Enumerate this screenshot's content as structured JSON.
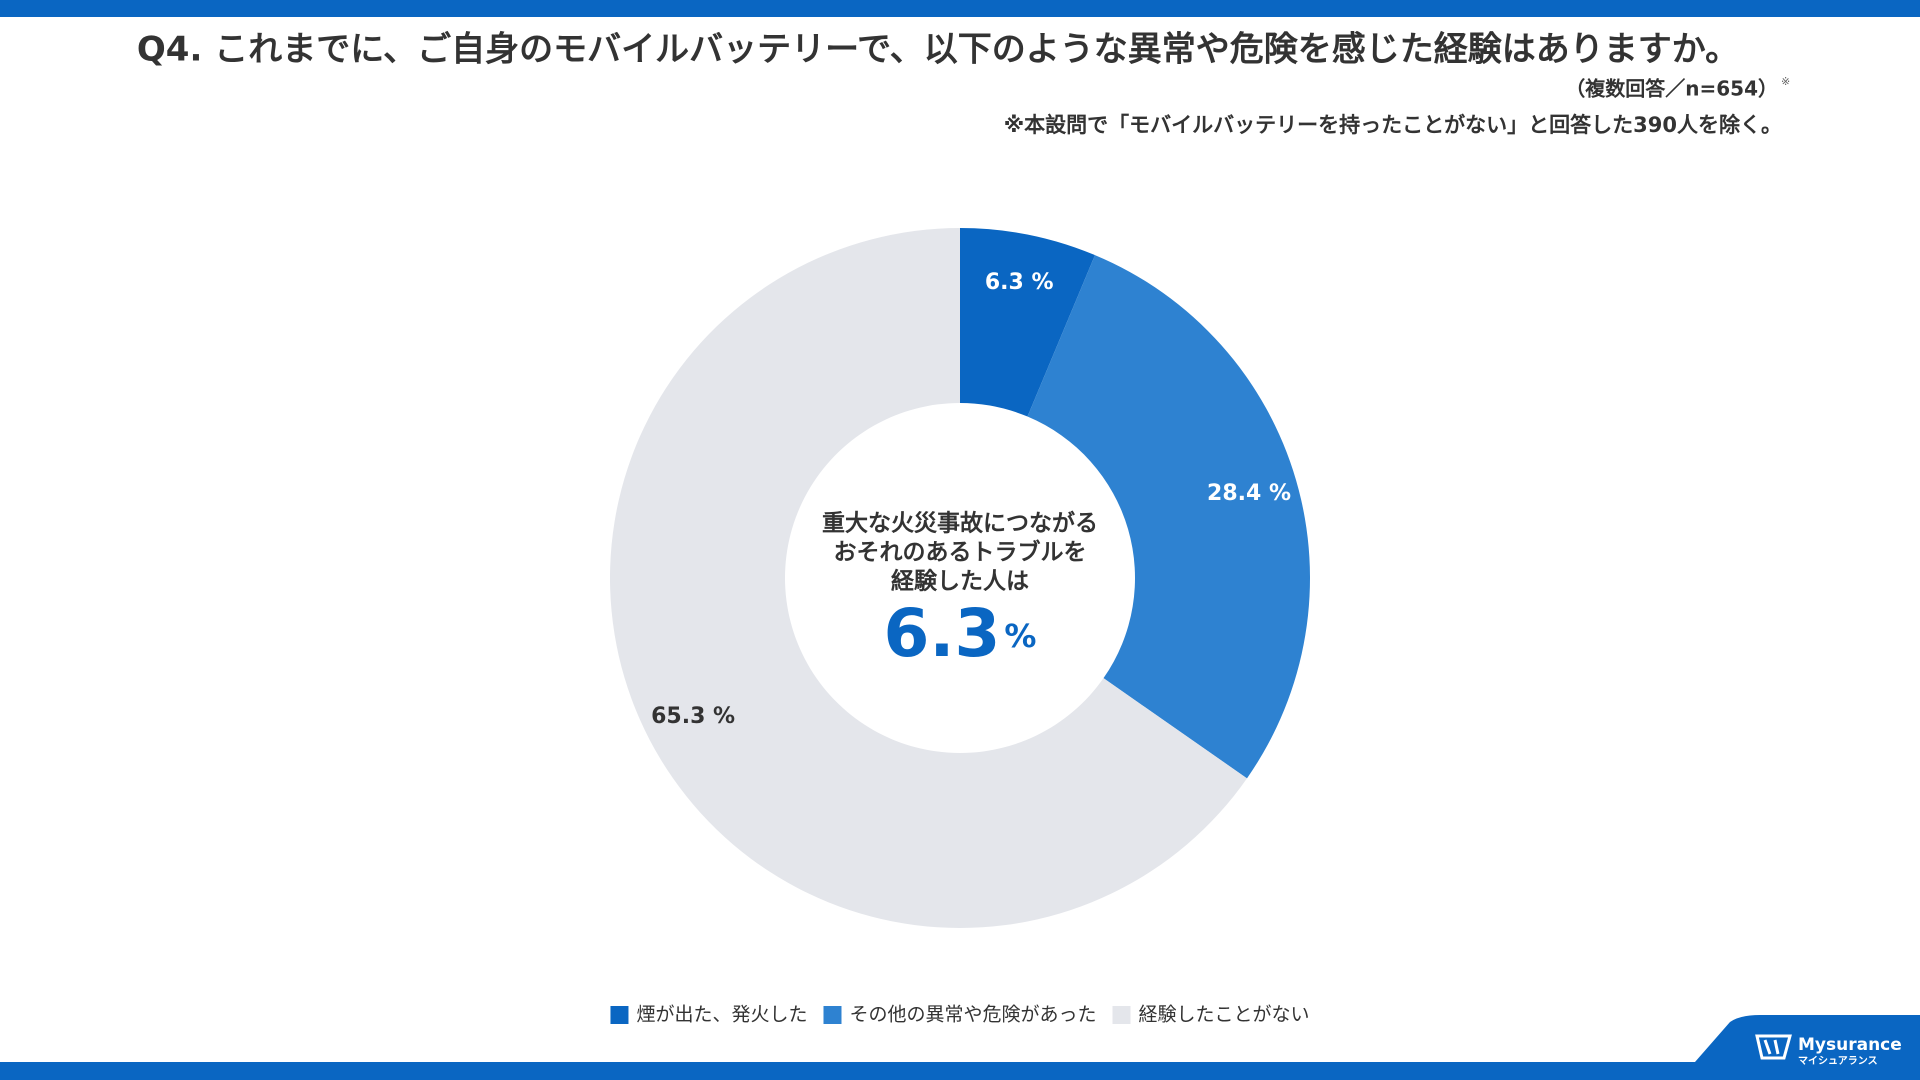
{
  "chart_data": {
    "type": "pie",
    "donut": true,
    "title": "Q4. これまでに、ご自身のモバイルバッテリーで、以下のような異常や危険を感じた経験はありますか。",
    "subtitle": "（複数回答／n=654）",
    "subtitle_mark": "※",
    "note": "※本設問で「モバイルバッテリーを持ったことがない」と回答した390人を除く。",
    "categories": [
      "煙が出た、発火した",
      "その他の異常や危険があった",
      "経験したことがない"
    ],
    "values": [
      6.3,
      28.4,
      65.3
    ],
    "value_labels": [
      "6.3 %",
      "28.4 %",
      "65.3 %"
    ],
    "colors": [
      "#0a66c2",
      "#2e82d1",
      "#e4e6eb"
    ],
    "label_colors": [
      "#ffffff",
      "#ffffff",
      "#333333"
    ],
    "center_text": [
      "重大な火災事故につながる",
      "おそれのあるトラブルを",
      "経験した人は"
    ],
    "center_value": 6.3,
    "center_unit": "%",
    "legend_position": "bottom",
    "brand": {
      "name": "Mysurance",
      "kana": "マイシュアランス"
    }
  }
}
